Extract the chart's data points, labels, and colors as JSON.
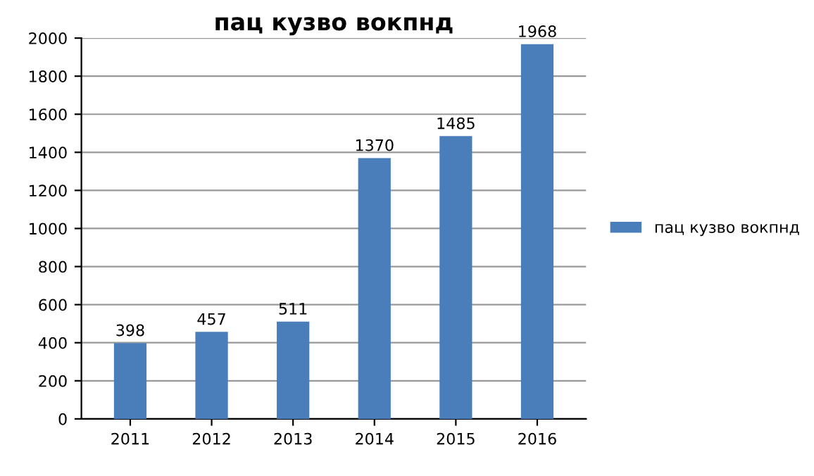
{
  "chart_data": {
    "type": "bar",
    "title": "пац кузво вокпнд",
    "categories": [
      "2011",
      "2012",
      "2013",
      "2014",
      "2015",
      "2016"
    ],
    "series": [
      {
        "name": "пац кузво вокпнд",
        "color": "#4a7ebb",
        "values": [
          398,
          457,
          511,
          1370,
          1485,
          1968
        ]
      }
    ],
    "ylim": [
      0,
      2000
    ],
    "yticks": [
      0,
      200,
      400,
      600,
      800,
      1000,
      1200,
      1400,
      1600,
      1800,
      2000
    ],
    "grid": "y",
    "legend": "right",
    "data_labels": true
  }
}
